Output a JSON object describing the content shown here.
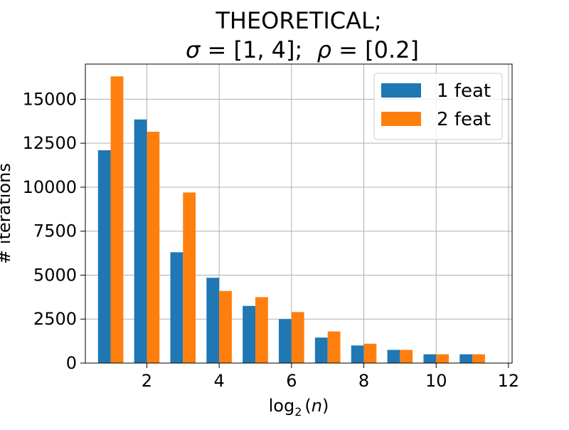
{
  "chart_data": {
    "type": "bar",
    "title_line1": "THEORETICAL;",
    "title_sigma_symbol": "σ",
    "title_sigma_value": " = [1, 4];  ",
    "title_rho_symbol": "ρ",
    "title_rho_value": " = [0.2]",
    "xlabel_prefix": "log",
    "xlabel_subscript": "2",
    "xlabel_open": "(",
    "xlabel_var": "n",
    "xlabel_close": ")",
    "ylabel": "# iterations",
    "x": [
      1,
      2,
      3,
      4,
      5,
      6,
      7,
      8,
      9,
      10,
      11
    ],
    "series": [
      {
        "name": "1 feat",
        "color": "#1f77b4",
        "values": [
          12100,
          13850,
          6300,
          4850,
          3250,
          2500,
          1450,
          1000,
          750,
          500,
          500
        ]
      },
      {
        "name": "2 feat",
        "color": "#ff7f0e",
        "values": [
          16300,
          13150,
          9700,
          4100,
          3750,
          2900,
          1800,
          1100,
          750,
          500,
          500
        ]
      }
    ],
    "xlim": [
      0.3,
      12.1
    ],
    "ylim": [
      0,
      17000
    ],
    "xticks": [
      2,
      4,
      6,
      8,
      10,
      12
    ],
    "yticks": [
      0,
      2500,
      5000,
      7500,
      10000,
      12500,
      15000
    ],
    "grid": true,
    "legend_position": "top-right"
  }
}
